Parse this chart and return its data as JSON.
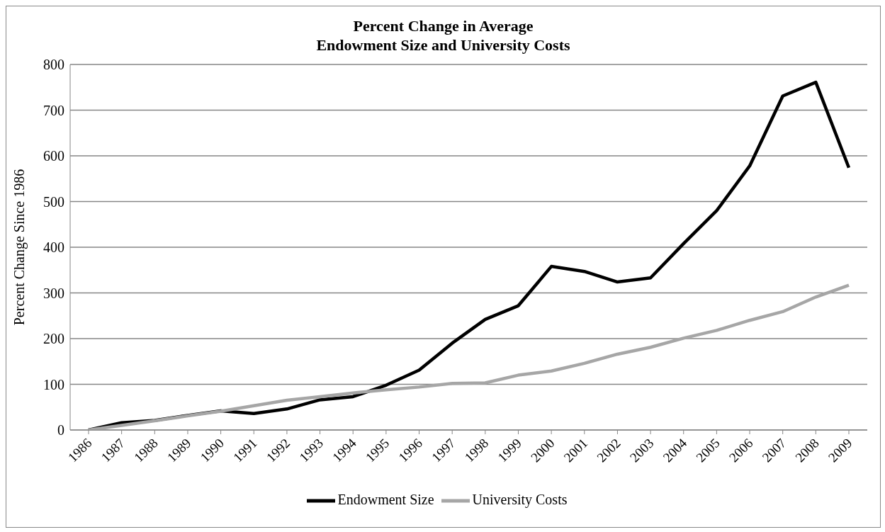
{
  "chart_data": {
    "type": "line",
    "title": "Percent Change in Average\nEndowment Size and University Costs",
    "ylabel": "Percent Change Since 1986",
    "categories": [
      "1986",
      "1987",
      "1988",
      "1989",
      "1990",
      "1991",
      "1992",
      "1993",
      "1994",
      "1995",
      "1996",
      "1997",
      "1998",
      "1999",
      "2000",
      "2001",
      "2002",
      "2003",
      "2004",
      "2005",
      "2006",
      "2007",
      "2008",
      "2009"
    ],
    "series": [
      {
        "name": "Endowment Size",
        "color": "#000000",
        "values": [
          0,
          16,
          21,
          32,
          42,
          36,
          46,
          66,
          73,
          98,
          131,
          190,
          242,
          272,
          358,
          347,
          324,
          333,
          408,
          480,
          578,
          731,
          761,
          574
        ]
      },
      {
        "name": "University Costs",
        "color": "#a6a6a6",
        "values": [
          0,
          10,
          20,
          31,
          41,
          53,
          65,
          73,
          81,
          88,
          94,
          102,
          103,
          120,
          129,
          146,
          166,
          181,
          201,
          218,
          240,
          259,
          291,
          317
        ]
      }
    ],
    "ylim": [
      0,
      800
    ],
    "yticks": [
      0,
      100,
      200,
      300,
      400,
      500,
      600,
      700,
      800
    ],
    "grid": "y",
    "legend": "bottom",
    "marker": "none",
    "line_style": "solid"
  }
}
